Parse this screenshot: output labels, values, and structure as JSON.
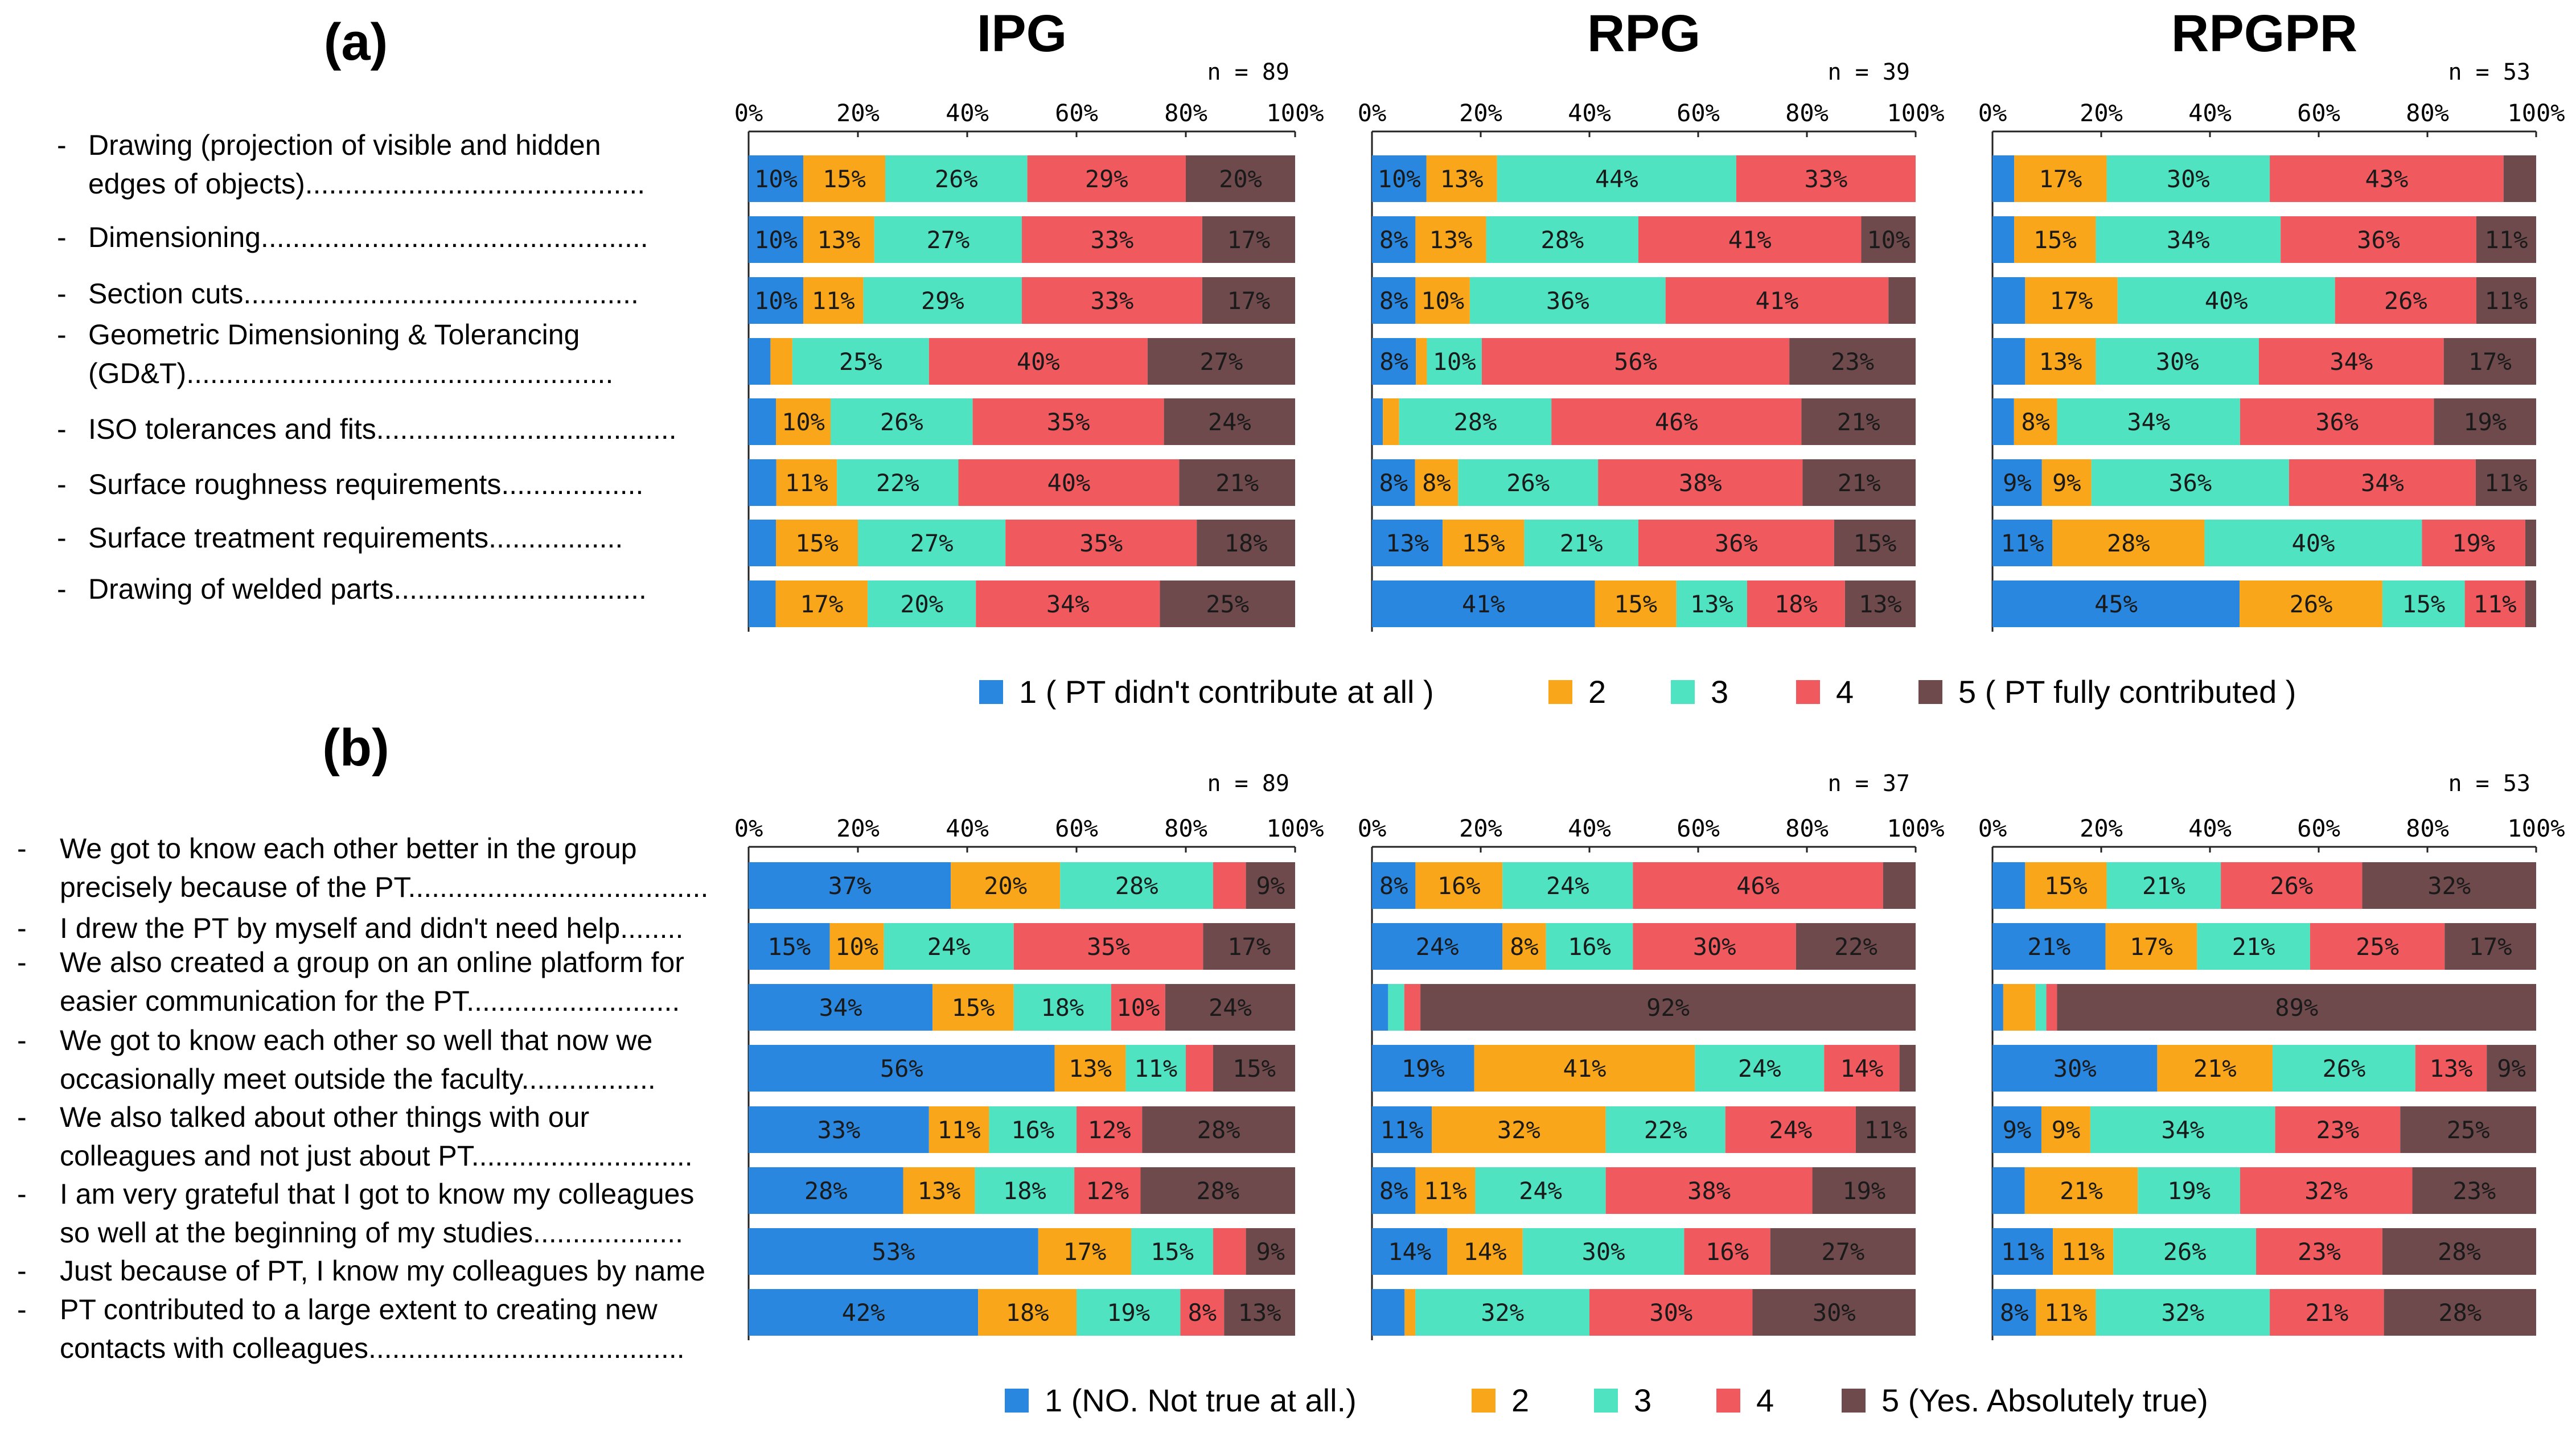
{
  "colors": {
    "1": "#2a87e0",
    "2": "#f9a61a",
    "3": "#4fe3c2",
    "4": "#f05a5f",
    "5": "#6e4a4c"
  },
  "panels": [
    {
      "label": "(a)",
      "rows": [
        [
          "Drawing (projection of visible and hidden",
          "edges of objects)..........................................."
        ],
        [
          "Dimensioning................................................."
        ],
        [
          "Section cuts.................................................."
        ],
        [
          "Geometric Dimensioning & Tolerancing",
          "(GD&T)......................................................"
        ],
        [
          "ISO tolerances and fits......................................"
        ],
        [
          "Surface roughness requirements.................."
        ],
        [
          "Surface treatment requirements................."
        ],
        [
          "Drawing of welded parts................................"
        ]
      ],
      "legend": [
        "1  ( PT didn't contribute at all )",
        "2",
        "3",
        "4",
        "5 ( PT fully contributed )"
      ]
    },
    {
      "label": "(b)",
      "rows": [
        [
          "We got to know each other better in the group",
          "precisely because of the PT......................................"
        ],
        [
          "I drew the PT by myself and didn't need help........"
        ],
        [
          "We also created a group on an online platform for",
          "easier communication for the PT..........................."
        ],
        [
          "We got to know each other so well that now we",
          "occasionally meet outside the faculty................."
        ],
        [
          "We also talked about other things with our",
          "colleagues and not just about PT............................"
        ],
        [
          "I am very grateful that I got to know my colleagues",
          "so well at the beginning of my studies..................."
        ],
        [
          "Just because of PT, I know my colleagues by name"
        ],
        [
          "PT contributed to a large extent to creating new",
          "contacts with colleagues........................................"
        ]
      ],
      "legend": [
        "1   (NO. Not true at all.)",
        "2",
        "3",
        "4",
        "5  (Yes. Absolutely true)"
      ]
    }
  ],
  "chart_data": [
    {
      "type": "bar",
      "orientation": "horizontal",
      "stacked": true,
      "panel": "(a)",
      "title": "IPG",
      "n_label": "n = 89",
      "xlim": [
        0,
        100
      ],
      "ticks": [
        "0%",
        "20%",
        "40%",
        "60%",
        "80%",
        "100%"
      ],
      "rows": [
        {
          "values": [
            10,
            15,
            26,
            29,
            20
          ],
          "labels": [
            "10%",
            "15%",
            "26%",
            "29%",
            "20%"
          ]
        },
        {
          "values": [
            10,
            13,
            27,
            33,
            17
          ],
          "labels": [
            "10%",
            "13%",
            "27%",
            "33%",
            "17%"
          ]
        },
        {
          "values": [
            10,
            11,
            29,
            33,
            17
          ],
          "labels": [
            "10%",
            "11%",
            "29%",
            "33%",
            "17%"
          ]
        },
        {
          "values": [
            4,
            4,
            25,
            40,
            27
          ],
          "labels": [
            "",
            "",
            "25%",
            "40%",
            "27%"
          ]
        },
        {
          "values": [
            5,
            10,
            26,
            35,
            24
          ],
          "labels": [
            "",
            "10%",
            "26%",
            "35%",
            "24%"
          ]
        },
        {
          "values": [
            5,
            11,
            22,
            40,
            21
          ],
          "labels": [
            "",
            "11%",
            "22%",
            "40%",
            "21%"
          ]
        },
        {
          "values": [
            5,
            15,
            27,
            35,
            18
          ],
          "labels": [
            "",
            "15%",
            "27%",
            "35%",
            "18%"
          ]
        },
        {
          "values": [
            5,
            17,
            20,
            34,
            25
          ],
          "labels": [
            "",
            "17%",
            "20%",
            "34%",
            "25%"
          ]
        }
      ]
    },
    {
      "type": "bar",
      "orientation": "horizontal",
      "stacked": true,
      "panel": "(a)",
      "title": "RPG",
      "n_label": "n = 39",
      "xlim": [
        0,
        100
      ],
      "ticks": [
        "0%",
        "20%",
        "40%",
        "60%",
        "80%",
        "100%"
      ],
      "rows": [
        {
          "values": [
            10,
            13,
            44,
            33,
            0
          ],
          "labels": [
            "10%",
            "13%",
            "44%",
            "33%",
            ""
          ]
        },
        {
          "values": [
            8,
            13,
            28,
            41,
            10
          ],
          "labels": [
            "8%",
            "13%",
            "28%",
            "41%",
            "10%"
          ]
        },
        {
          "values": [
            8,
            10,
            36,
            41,
            5
          ],
          "labels": [
            "8%",
            "10%",
            "36%",
            "41%",
            ""
          ]
        },
        {
          "values": [
            8,
            2,
            10,
            56,
            23
          ],
          "labels": [
            "8%",
            "",
            "10%",
            "56%",
            "23%"
          ]
        },
        {
          "values": [
            2,
            3,
            28,
            46,
            21
          ],
          "labels": [
            "",
            "",
            "28%",
            "46%",
            "21%"
          ]
        },
        {
          "values": [
            8,
            8,
            26,
            38,
            21
          ],
          "labels": [
            "8%",
            "8%",
            "26%",
            "38%",
            "21%"
          ]
        },
        {
          "values": [
            13,
            15,
            21,
            36,
            15
          ],
          "labels": [
            "13%",
            "15%",
            "21%",
            "36%",
            "15%"
          ]
        },
        {
          "values": [
            41,
            15,
            13,
            18,
            13
          ],
          "labels": [
            "41%",
            "15%",
            "13%",
            "18%",
            "13%"
          ]
        }
      ]
    },
    {
      "type": "bar",
      "orientation": "horizontal",
      "stacked": true,
      "panel": "(a)",
      "title": "RPGPR",
      "n_label": "n = 53",
      "xlim": [
        0,
        100
      ],
      "ticks": [
        "0%",
        "20%",
        "40%",
        "60%",
        "80%",
        "100%"
      ],
      "rows": [
        {
          "values": [
            4,
            17,
            30,
            43,
            6
          ],
          "labels": [
            "",
            "17%",
            "30%",
            "43%",
            ""
          ]
        },
        {
          "values": [
            4,
            15,
            34,
            36,
            11
          ],
          "labels": [
            "",
            "15%",
            "34%",
            "36%",
            "11%"
          ]
        },
        {
          "values": [
            6,
            17,
            40,
            26,
            11
          ],
          "labels": [
            "",
            "17%",
            "40%",
            "26%",
            "11%"
          ]
        },
        {
          "values": [
            6,
            13,
            30,
            34,
            17
          ],
          "labels": [
            "",
            "13%",
            "30%",
            "34%",
            "17%"
          ]
        },
        {
          "values": [
            4,
            8,
            34,
            36,
            19
          ],
          "labels": [
            "",
            "8%",
            "34%",
            "36%",
            "19%"
          ]
        },
        {
          "values": [
            9,
            9,
            36,
            34,
            11
          ],
          "labels": [
            "9%",
            "9%",
            "36%",
            "34%",
            "11%"
          ]
        },
        {
          "values": [
            11,
            28,
            40,
            19,
            2
          ],
          "labels": [
            "11%",
            "28%",
            "40%",
            "19%",
            ""
          ]
        },
        {
          "values": [
            45,
            26,
            15,
            11,
            2
          ],
          "labels": [
            "45%",
            "26%",
            "15%",
            "11%",
            ""
          ]
        }
      ]
    },
    {
      "type": "bar",
      "orientation": "horizontal",
      "stacked": true,
      "panel": "(b)",
      "title": "",
      "n_label": "n = 89",
      "xlim": [
        0,
        100
      ],
      "ticks": [
        "0%",
        "20%",
        "40%",
        "60%",
        "80%",
        "100%"
      ],
      "rows": [
        {
          "values": [
            37,
            20,
            28,
            6,
            9
          ],
          "labels": [
            "37%",
            "20%",
            "28%",
            "",
            "9%"
          ]
        },
        {
          "values": [
            15,
            10,
            24,
            35,
            17
          ],
          "labels": [
            "15%",
            "10%",
            "24%",
            "35%",
            "17%"
          ]
        },
        {
          "values": [
            34,
            15,
            18,
            10,
            24
          ],
          "labels": [
            "34%",
            "15%",
            "18%",
            "10%",
            "24%"
          ]
        },
        {
          "values": [
            56,
            13,
            11,
            5,
            15
          ],
          "labels": [
            "56%",
            "13%",
            "11%",
            "",
            "15%"
          ]
        },
        {
          "values": [
            33,
            11,
            16,
            12,
            28
          ],
          "labels": [
            "33%",
            "11%",
            "16%",
            "12%",
            "28%"
          ]
        },
        {
          "values": [
            28,
            13,
            18,
            12,
            28
          ],
          "labels": [
            "28%",
            "13%",
            "18%",
            "12%",
            "28%"
          ]
        },
        {
          "values": [
            53,
            17,
            15,
            6,
            9
          ],
          "labels": [
            "53%",
            "17%",
            "15%",
            "",
            "9%"
          ]
        },
        {
          "values": [
            42,
            18,
            19,
            8,
            13
          ],
          "labels": [
            "42%",
            "18%",
            "19%",
            "8%",
            "13%"
          ]
        }
      ]
    },
    {
      "type": "bar",
      "orientation": "horizontal",
      "stacked": true,
      "panel": "(b)",
      "title": "",
      "n_label": "n = 37",
      "xlim": [
        0,
        100
      ],
      "ticks": [
        "0%",
        "20%",
        "40%",
        "60%",
        "80%",
        "100%"
      ],
      "rows": [
        {
          "values": [
            8,
            16,
            24,
            46,
            6
          ],
          "labels": [
            "8%",
            "16%",
            "24%",
            "46%",
            ""
          ]
        },
        {
          "values": [
            24,
            8,
            16,
            30,
            22
          ],
          "labels": [
            "24%",
            "8%",
            "16%",
            "30%",
            "22%"
          ]
        },
        {
          "values": [
            3,
            0,
            3,
            3,
            92
          ],
          "labels": [
            "",
            "",
            "",
            "",
            "92%"
          ]
        },
        {
          "values": [
            19,
            41,
            24,
            14,
            3
          ],
          "labels": [
            "19%",
            "41%",
            "24%",
            "14%",
            ""
          ]
        },
        {
          "values": [
            11,
            32,
            22,
            24,
            11
          ],
          "labels": [
            "11%",
            "32%",
            "22%",
            "24%",
            "11%"
          ]
        },
        {
          "values": [
            8,
            11,
            24,
            38,
            19
          ],
          "labels": [
            "8%",
            "11%",
            "24%",
            "38%",
            "19%"
          ]
        },
        {
          "values": [
            14,
            14,
            30,
            16,
            27
          ],
          "labels": [
            "14%",
            "14%",
            "30%",
            "16%",
            "27%"
          ]
        },
        {
          "values": [
            6,
            2,
            32,
            30,
            30
          ],
          "labels": [
            "",
            "",
            "32%",
            "30%",
            "30%"
          ]
        }
      ]
    },
    {
      "type": "bar",
      "orientation": "horizontal",
      "stacked": true,
      "panel": "(b)",
      "title": "",
      "n_label": "n = 53",
      "xlim": [
        0,
        100
      ],
      "ticks": [
        "0%",
        "20%",
        "40%",
        "60%",
        "80%",
        "100%"
      ],
      "rows": [
        {
          "values": [
            6,
            15,
            21,
            26,
            32
          ],
          "labels": [
            "",
            "15%",
            "21%",
            "26%",
            "32%"
          ]
        },
        {
          "values": [
            21,
            17,
            21,
            25,
            17
          ],
          "labels": [
            "21%",
            "17%",
            "21%",
            "25%",
            "17%"
          ]
        },
        {
          "values": [
            2,
            6,
            2,
            2,
            89
          ],
          "labels": [
            "",
            "",
            "",
            "",
            "89%"
          ]
        },
        {
          "values": [
            30,
            21,
            26,
            13,
            9
          ],
          "labels": [
            "30%",
            "21%",
            "26%",
            "13%",
            "9%"
          ]
        },
        {
          "values": [
            9,
            9,
            34,
            23,
            25
          ],
          "labels": [
            "9%",
            "9%",
            "34%",
            "23%",
            "25%"
          ]
        },
        {
          "values": [
            6,
            21,
            19,
            32,
            23
          ],
          "labels": [
            "",
            "21%",
            "19%",
            "32%",
            "23%"
          ]
        },
        {
          "values": [
            11,
            11,
            26,
            23,
            28
          ],
          "labels": [
            "11%",
            "11%",
            "26%",
            "23%",
            "28%"
          ]
        },
        {
          "values": [
            8,
            11,
            32,
            21,
            28
          ],
          "labels": [
            "8%",
            "11%",
            "32%",
            "21%",
            "28%"
          ]
        }
      ]
    }
  ]
}
